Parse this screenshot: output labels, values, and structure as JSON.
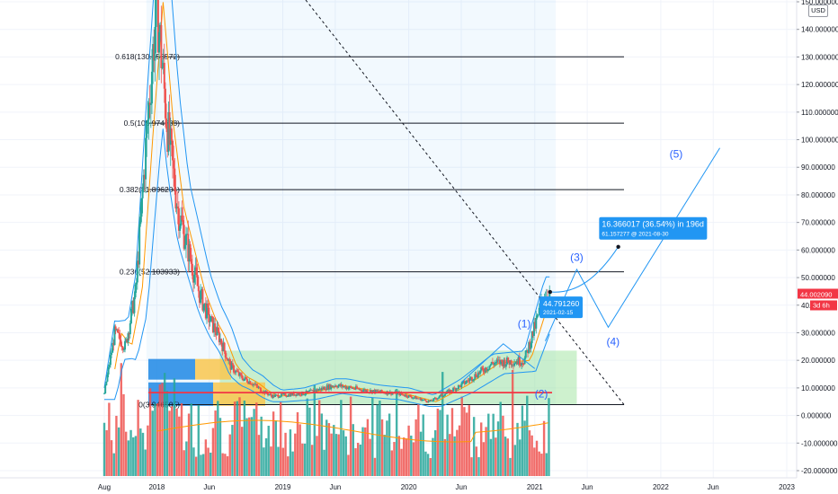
{
  "currency": "USD",
  "colors": {
    "up": "#26a69a",
    "down": "#ef5350",
    "channel": "#2196f3",
    "ma": "#ff9800",
    "accent_blue": "#2196f3",
    "zone_green": "#a5e6a5",
    "price_red": "#f23645"
  },
  "chart_data": {
    "type": "candlestick",
    "y_axis": {
      "min": -22,
      "max": 152,
      "ticks": [
        -20,
        -10,
        0,
        10,
        20,
        30,
        40,
        50,
        60,
        70,
        80,
        90,
        100,
        110,
        120,
        130,
        140,
        150
      ],
      "tick_labels": [
        "-20.000000",
        "-10.000000",
        "0.000000",
        "10.000000",
        "20.000000",
        "30.000000",
        "40.000000",
        "50.000000",
        "60.000000",
        "70.000000",
        "80.000000",
        "90.000000",
        "100.000000",
        "110.000000",
        "120.000000",
        "130.000000",
        "140.000000",
        "150.000000"
      ]
    },
    "x_axis": {
      "labels": [
        "Aug",
        "2018",
        "Jun",
        "2019",
        "Jun",
        "2020",
        "Jun",
        "2021",
        "Jun",
        "2022",
        "Jun",
        "2023"
      ],
      "label_dates": [
        "2017-08",
        "2018-01",
        "2018-06",
        "2019-01",
        "2019-06",
        "2020-01",
        "2020-06",
        "2021-01",
        "2021-06",
        "2022-01",
        "2022-06",
        "2023-01"
      ]
    },
    "last_price": {
      "value": 44.00209,
      "label": "44.002090",
      "countdown": "3d 6h"
    },
    "fib_levels": [
      {
        "label": "0.618(130.053572)",
        "value": 130.053572
      },
      {
        "label": "0.5(105.974888)",
        "value": 105.974888
      },
      {
        "label": "0.382(81.896204)",
        "value": 81.896204
      },
      {
        "label": "0.236(52.103933)",
        "value": 52.103933
      },
      {
        "label": "0(3.946505)",
        "value": 3.946505
      }
    ],
    "support_line": {
      "value": 8.3
    },
    "current_callout": {
      "price": "44.791260",
      "date": "2021-02-15"
    },
    "projection_callout": {
      "text": "16.366017 (36.54%) in 196d",
      "sub": "61.157277 @ 2021-08-30"
    },
    "wave_labels": [
      "(1)",
      "(2)",
      "(3)",
      "(4)",
      "(5)"
    ],
    "candles_monthly_close": [
      {
        "date": "2017-08",
        "close": 8
      },
      {
        "date": "2017-09",
        "close": 30
      },
      {
        "date": "2017-10",
        "close": 25
      },
      {
        "date": "2017-11",
        "close": 45
      },
      {
        "date": "2017-12",
        "close": 100
      },
      {
        "date": "2018-01",
        "close": 150
      },
      {
        "date": "2018-02",
        "close": 105
      },
      {
        "date": "2018-03",
        "close": 75
      },
      {
        "date": "2018-04",
        "close": 60
      },
      {
        "date": "2018-05",
        "close": 45
      },
      {
        "date": "2018-06",
        "close": 35
      },
      {
        "date": "2018-07",
        "close": 28
      },
      {
        "date": "2018-08",
        "close": 18
      },
      {
        "date": "2018-09",
        "close": 14
      },
      {
        "date": "2018-10",
        "close": 12
      },
      {
        "date": "2018-11",
        "close": 9
      },
      {
        "date": "2018-12",
        "close": 7
      },
      {
        "date": "2019-03",
        "close": 8
      },
      {
        "date": "2019-06",
        "close": 11
      },
      {
        "date": "2019-09",
        "close": 9
      },
      {
        "date": "2019-12",
        "close": 8
      },
      {
        "date": "2020-03",
        "close": 5
      },
      {
        "date": "2020-06",
        "close": 11
      },
      {
        "date": "2020-09",
        "close": 19
      },
      {
        "date": "2020-12",
        "close": 20
      },
      {
        "date": "2021-02",
        "close": 44
      }
    ]
  }
}
